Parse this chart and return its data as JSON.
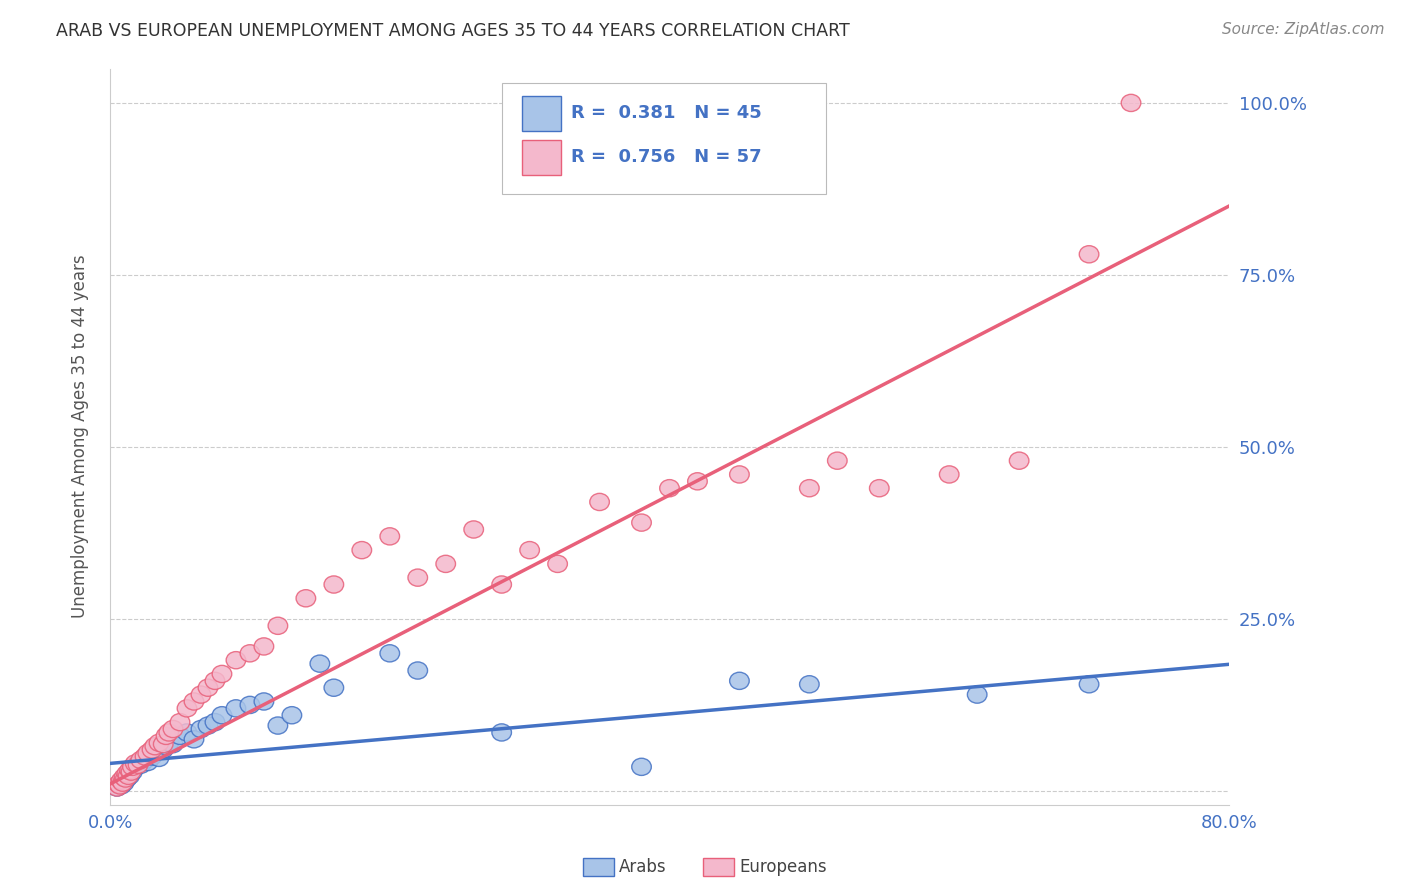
{
  "title": "ARAB VS EUROPEAN UNEMPLOYMENT AMONG AGES 35 TO 44 YEARS CORRELATION CHART",
  "source": "Source: ZipAtlas.com",
  "ylabel": "Unemployment Among Ages 35 to 44 years",
  "xlim": [
    0,
    0.8
  ],
  "ylim": [
    -0.02,
    1.05
  ],
  "arab_color": "#a8c4e8",
  "european_color": "#f4b8cc",
  "arab_line_color": "#4472c4",
  "european_line_color": "#e8607a",
  "arab_R": 0.381,
  "arab_N": 45,
  "european_R": 0.756,
  "european_N": 57,
  "text_color": "#4472c4",
  "title_color": "#333333",
  "grid_color": "#cccccc",
  "background_color": "#ffffff",
  "arab_x": [
    0.005,
    0.007,
    0.008,
    0.009,
    0.01,
    0.011,
    0.012,
    0.013,
    0.014,
    0.015,
    0.016,
    0.018,
    0.02,
    0.022,
    0.025,
    0.027,
    0.03,
    0.032,
    0.035,
    0.038,
    0.04,
    0.042,
    0.045,
    0.05,
    0.055,
    0.06,
    0.065,
    0.07,
    0.075,
    0.08,
    0.09,
    0.1,
    0.11,
    0.12,
    0.13,
    0.15,
    0.16,
    0.2,
    0.22,
    0.28,
    0.38,
    0.45,
    0.5,
    0.62,
    0.7
  ],
  "arab_y": [
    0.005,
    0.01,
    0.008,
    0.015,
    0.012,
    0.02,
    0.018,
    0.025,
    0.022,
    0.03,
    0.028,
    0.035,
    0.04,
    0.038,
    0.045,
    0.042,
    0.05,
    0.055,
    0.048,
    0.06,
    0.065,
    0.07,
    0.068,
    0.08,
    0.085,
    0.075,
    0.09,
    0.095,
    0.1,
    0.11,
    0.12,
    0.125,
    0.13,
    0.095,
    0.11,
    0.185,
    0.15,
    0.2,
    0.175,
    0.085,
    0.035,
    0.16,
    0.155,
    0.14,
    0.155
  ],
  "european_x": [
    0.005,
    0.006,
    0.007,
    0.008,
    0.009,
    0.01,
    0.011,
    0.012,
    0.013,
    0.014,
    0.015,
    0.016,
    0.018,
    0.02,
    0.022,
    0.025,
    0.027,
    0.03,
    0.032,
    0.035,
    0.038,
    0.04,
    0.042,
    0.045,
    0.05,
    0.055,
    0.06,
    0.065,
    0.07,
    0.075,
    0.08,
    0.09,
    0.1,
    0.11,
    0.12,
    0.14,
    0.16,
    0.18,
    0.2,
    0.22,
    0.24,
    0.26,
    0.28,
    0.3,
    0.32,
    0.35,
    0.38,
    0.4,
    0.42,
    0.45,
    0.5,
    0.52,
    0.55,
    0.6,
    0.65,
    0.7,
    0.73
  ],
  "european_y": [
    0.005,
    0.01,
    0.008,
    0.015,
    0.012,
    0.02,
    0.018,
    0.025,
    0.022,
    0.03,
    0.028,
    0.035,
    0.04,
    0.038,
    0.045,
    0.05,
    0.055,
    0.06,
    0.065,
    0.07,
    0.068,
    0.08,
    0.085,
    0.09,
    0.1,
    0.12,
    0.13,
    0.14,
    0.15,
    0.16,
    0.17,
    0.19,
    0.2,
    0.21,
    0.24,
    0.28,
    0.3,
    0.35,
    0.37,
    0.31,
    0.33,
    0.38,
    0.3,
    0.35,
    0.33,
    0.42,
    0.39,
    0.44,
    0.45,
    0.46,
    0.44,
    0.48,
    0.44,
    0.46,
    0.48,
    0.78,
    1.0
  ],
  "arab_line_slope": 0.18,
  "arab_line_intercept": 0.04,
  "european_line_slope": 1.05,
  "european_line_intercept": 0.01
}
